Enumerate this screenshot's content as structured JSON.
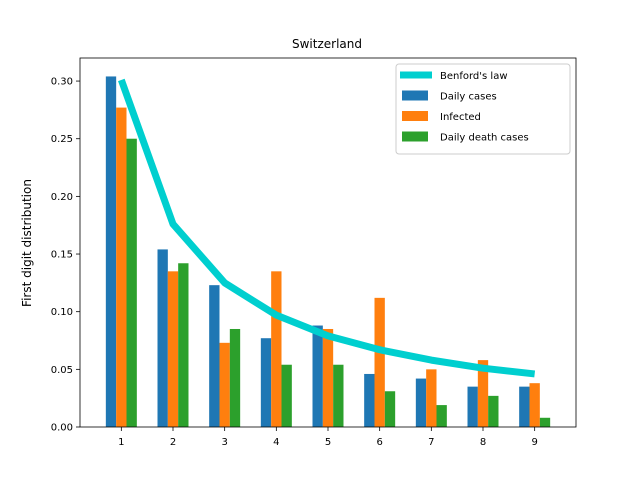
{
  "chart_data": {
    "type": "bar",
    "title": "Switzerland",
    "xlabel": "",
    "ylabel": "First digit distribution",
    "categories": [
      "1",
      "2",
      "3",
      "4",
      "5",
      "6",
      "7",
      "8",
      "9"
    ],
    "x": [
      1,
      2,
      3,
      4,
      5,
      6,
      7,
      8,
      9
    ],
    "ylim": [
      0,
      0.32
    ],
    "xlim": [
      0.2,
      9.8
    ],
    "yticks": [
      "0.00",
      "0.05",
      "0.10",
      "0.15",
      "0.20",
      "0.25",
      "0.30"
    ],
    "ytick_values": [
      0,
      0.05,
      0.1,
      0.15,
      0.2,
      0.25,
      0.3
    ],
    "grid": false,
    "legend_position": "top-right",
    "line": {
      "name": "Benford's law",
      "color": "#00cfcf",
      "values": [
        0.301,
        0.176,
        0.125,
        0.097,
        0.079,
        0.067,
        0.058,
        0.051,
        0.046
      ]
    },
    "series": [
      {
        "name": "Daily cases",
        "color": "#1f77b4",
        "values": [
          0.304,
          0.154,
          0.123,
          0.077,
          0.088,
          0.046,
          0.042,
          0.035,
          0.035
        ]
      },
      {
        "name": "Infected",
        "color": "#ff7f0e",
        "values": [
          0.277,
          0.135,
          0.073,
          0.135,
          0.085,
          0.112,
          0.05,
          0.058,
          0.038
        ]
      },
      {
        "name": "Daily death cases",
        "color": "#2ca02c",
        "values": [
          0.25,
          0.142,
          0.085,
          0.054,
          0.054,
          0.031,
          0.019,
          0.027,
          0.008
        ]
      }
    ]
  }
}
